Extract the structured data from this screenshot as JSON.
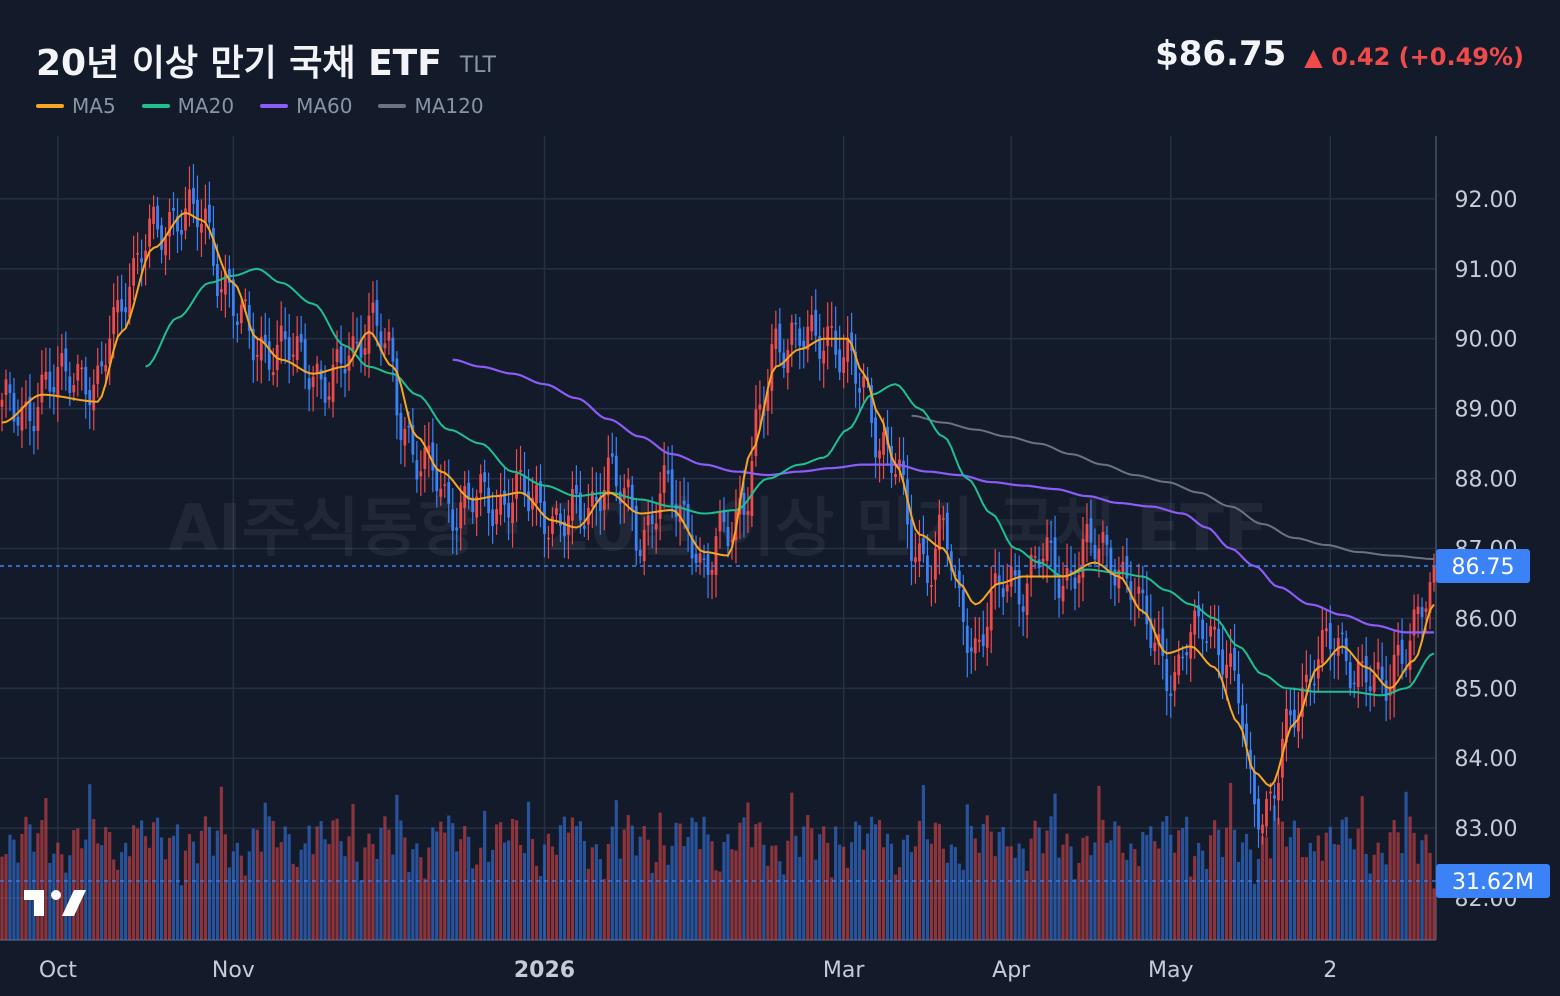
{
  "header": {
    "title": "20년 이상 만기 국채 ETF",
    "ticker": "TLT",
    "price": "$86.75",
    "change": "▲ 0.42 (+0.49%)"
  },
  "legend": [
    {
      "label": "MA5",
      "color": "#f5a623"
    },
    {
      "label": "MA20",
      "color": "#1fbf8f"
    },
    {
      "label": "MA60",
      "color": "#8b5cf6"
    },
    {
      "label": "MA120",
      "color": "#6b7280"
    }
  ],
  "watermark": "AI주식동향 · 20년 이상 만기 국채 ETF",
  "colors": {
    "up": "#ef4b4b",
    "down": "#3b82f6",
    "background": "#131a2a",
    "grid": "#263043"
  },
  "chart_data": {
    "type": "candlestick",
    "title": "20년 이상 만기 국채 ETF",
    "ylim": [
      81.4,
      92.9
    ],
    "y_ticks": [
      "92.00",
      "91.00",
      "90.00",
      "89.00",
      "88.00",
      "87.00",
      "86.00",
      "85.00",
      "84.00",
      "83.00",
      "82.00"
    ],
    "x_tick_labels": [
      "Oct",
      "Nov",
      "2026",
      "Mar",
      "Apr",
      "May",
      "2"
    ],
    "x_tick_index": [
      14,
      58,
      136,
      211,
      253,
      293,
      333
    ],
    "last_price_label": "86.75",
    "last_volume_label": "31.62M",
    "volume_max": 36,
    "close_anchors": [
      [
        0,
        89.0
      ],
      [
        5,
        88.95
      ],
      [
        12,
        89.3
      ],
      [
        18,
        89.6
      ],
      [
        24,
        89.2
      ],
      [
        28,
        90.3
      ],
      [
        32,
        90.9
      ],
      [
        38,
        91.5
      ],
      [
        44,
        91.8
      ],
      [
        50,
        91.7
      ],
      [
        56,
        90.8
      ],
      [
        60,
        90.2
      ],
      [
        64,
        89.9
      ],
      [
        70,
        89.85
      ],
      [
        76,
        89.7
      ],
      [
        82,
        89.3
      ],
      [
        88,
        89.85
      ],
      [
        92,
        90.3
      ],
      [
        96,
        89.9
      ],
      [
        100,
        88.9
      ],
      [
        104,
        88.3
      ],
      [
        108,
        88.05
      ],
      [
        112,
        87.6
      ],
      [
        118,
        87.7
      ],
      [
        124,
        87.6
      ],
      [
        128,
        87.85
      ],
      [
        134,
        87.6
      ],
      [
        140,
        87.4
      ],
      [
        146,
        87.5
      ],
      [
        152,
        88.1
      ],
      [
        156,
        87.7
      ],
      [
        160,
        87.2
      ],
      [
        166,
        87.8
      ],
      [
        172,
        87.4
      ],
      [
        176,
        86.65
      ],
      [
        182,
        87.3
      ],
      [
        186,
        87.7
      ],
      [
        190,
        88.8
      ],
      [
        194,
        89.9
      ],
      [
        198,
        90.1
      ],
      [
        204,
        89.9
      ],
      [
        208,
        90.1
      ],
      [
        212,
        89.7
      ],
      [
        216,
        89.2
      ],
      [
        220,
        88.6
      ],
      [
        224,
        88.25
      ],
      [
        228,
        87.0
      ],
      [
        232,
        86.8
      ],
      [
        236,
        87.3
      ],
      [
        240,
        86.1
      ],
      [
        244,
        85.6
      ],
      [
        248,
        86.2
      ],
      [
        252,
        86.5
      ],
      [
        256,
        86.5
      ],
      [
        260,
        86.9
      ],
      [
        266,
        86.55
      ],
      [
        272,
        87.0
      ],
      [
        278,
        86.9
      ],
      [
        282,
        86.6
      ],
      [
        286,
        86.0
      ],
      [
        290,
        85.6
      ],
      [
        294,
        85.1
      ],
      [
        298,
        85.7
      ],
      [
        302,
        86.0
      ],
      [
        306,
        85.5
      ],
      [
        310,
        84.8
      ],
      [
        314,
        83.4
      ],
      [
        318,
        83.3
      ],
      [
        322,
        84.3
      ],
      [
        326,
        85.0
      ],
      [
        330,
        85.5
      ],
      [
        334,
        85.6
      ],
      [
        338,
        85.4
      ],
      [
        342,
        85.2
      ],
      [
        346,
        84.9
      ],
      [
        350,
        85.5
      ],
      [
        354,
        85.85
      ],
      [
        358,
        86.3
      ],
      [
        359,
        86.75
      ]
    ],
    "ma5_anchors": [
      [
        0,
        88.8
      ],
      [
        10,
        89.2
      ],
      [
        24,
        89.1
      ],
      [
        30,
        90.1
      ],
      [
        38,
        91.3
      ],
      [
        46,
        91.8
      ],
      [
        50,
        91.7
      ],
      [
        58,
        90.8
      ],
      [
        64,
        90.0
      ],
      [
        70,
        89.7
      ],
      [
        78,
        89.5
      ],
      [
        86,
        89.6
      ],
      [
        92,
        90.1
      ],
      [
        98,
        89.6
      ],
      [
        104,
        88.6
      ],
      [
        110,
        88.1
      ],
      [
        118,
        87.7
      ],
      [
        124,
        87.75
      ],
      [
        130,
        87.8
      ],
      [
        138,
        87.4
      ],
      [
        144,
        87.3
      ],
      [
        152,
        87.8
      ],
      [
        160,
        87.5
      ],
      [
        168,
        87.55
      ],
      [
        176,
        86.95
      ],
      [
        182,
        86.9
      ],
      [
        188,
        88.4
      ],
      [
        194,
        89.6
      ],
      [
        200,
        89.85
      ],
      [
        206,
        90.0
      ],
      [
        212,
        90.0
      ],
      [
        216,
        89.5
      ],
      [
        220,
        88.9
      ],
      [
        224,
        88.2
      ],
      [
        230,
        87.2
      ],
      [
        236,
        87.0
      ],
      [
        240,
        86.5
      ],
      [
        244,
        86.2
      ],
      [
        250,
        86.5
      ],
      [
        256,
        86.6
      ],
      [
        266,
        86.6
      ],
      [
        274,
        86.8
      ],
      [
        280,
        86.6
      ],
      [
        286,
        86.1
      ],
      [
        292,
        85.5
      ],
      [
        298,
        85.6
      ],
      [
        304,
        85.3
      ],
      [
        310,
        84.5
      ],
      [
        314,
        83.8
      ],
      [
        318,
        83.6
      ],
      [
        324,
        84.5
      ],
      [
        330,
        85.3
      ],
      [
        336,
        85.6
      ],
      [
        342,
        85.3
      ],
      [
        348,
        85.0
      ],
      [
        354,
        85.4
      ],
      [
        359,
        86.2
      ]
    ],
    "ma20_anchors": [
      [
        36,
        89.6
      ],
      [
        44,
        90.3
      ],
      [
        52,
        90.8
      ],
      [
        58,
        90.9
      ],
      [
        64,
        91.0
      ],
      [
        70,
        90.8
      ],
      [
        78,
        90.5
      ],
      [
        86,
        89.9
      ],
      [
        92,
        89.6
      ],
      [
        98,
        89.5
      ],
      [
        104,
        89.2
      ],
      [
        112,
        88.7
      ],
      [
        120,
        88.5
      ],
      [
        128,
        88.1
      ],
      [
        136,
        87.9
      ],
      [
        144,
        87.75
      ],
      [
        152,
        87.8
      ],
      [
        160,
        87.7
      ],
      [
        168,
        87.6
      ],
      [
        176,
        87.5
      ],
      [
        184,
        87.55
      ],
      [
        192,
        88.0
      ],
      [
        200,
        88.2
      ],
      [
        206,
        88.3
      ],
      [
        212,
        88.7
      ],
      [
        218,
        89.2
      ],
      [
        224,
        89.35
      ],
      [
        230,
        89.0
      ],
      [
        236,
        88.6
      ],
      [
        242,
        88.0
      ],
      [
        248,
        87.5
      ],
      [
        254,
        87.0
      ],
      [
        260,
        86.8
      ],
      [
        266,
        86.6
      ],
      [
        272,
        86.7
      ],
      [
        280,
        86.65
      ],
      [
        286,
        86.6
      ],
      [
        292,
        86.4
      ],
      [
        298,
        86.2
      ],
      [
        304,
        86.0
      ],
      [
        310,
        85.6
      ],
      [
        316,
        85.2
      ],
      [
        322,
        85.0
      ],
      [
        330,
        84.95
      ],
      [
        338,
        84.95
      ],
      [
        346,
        84.9
      ],
      [
        352,
        85.0
      ],
      [
        359,
        85.5
      ]
    ],
    "ma60_anchors": [
      [
        113,
        89.7
      ],
      [
        120,
        89.6
      ],
      [
        128,
        89.5
      ],
      [
        136,
        89.35
      ],
      [
        144,
        89.15
      ],
      [
        152,
        88.85
      ],
      [
        160,
        88.6
      ],
      [
        168,
        88.35
      ],
      [
        176,
        88.2
      ],
      [
        184,
        88.1
      ],
      [
        192,
        88.05
      ],
      [
        200,
        88.1
      ],
      [
        208,
        88.15
      ],
      [
        216,
        88.2
      ],
      [
        224,
        88.2
      ],
      [
        232,
        88.1
      ],
      [
        240,
        88.05
      ],
      [
        248,
        87.95
      ],
      [
        256,
        87.9
      ],
      [
        264,
        87.85
      ],
      [
        272,
        87.75
      ],
      [
        280,
        87.65
      ],
      [
        288,
        87.6
      ],
      [
        296,
        87.5
      ],
      [
        302,
        87.3
      ],
      [
        308,
        87.0
      ],
      [
        314,
        86.75
      ],
      [
        320,
        86.45
      ],
      [
        328,
        86.2
      ],
      [
        336,
        86.05
      ],
      [
        344,
        85.9
      ],
      [
        352,
        85.8
      ],
      [
        359,
        85.8
      ]
    ],
    "ma120_anchors": [
      [
        228,
        88.9
      ],
      [
        236,
        88.8
      ],
      [
        244,
        88.7
      ],
      [
        252,
        88.6
      ],
      [
        260,
        88.5
      ],
      [
        268,
        88.35
      ],
      [
        276,
        88.2
      ],
      [
        284,
        88.05
      ],
      [
        292,
        87.95
      ],
      [
        300,
        87.8
      ],
      [
        308,
        87.6
      ],
      [
        316,
        87.35
      ],
      [
        324,
        87.15
      ],
      [
        332,
        87.05
      ],
      [
        340,
        86.95
      ],
      [
        348,
        86.9
      ],
      [
        359,
        86.85
      ]
    ]
  }
}
